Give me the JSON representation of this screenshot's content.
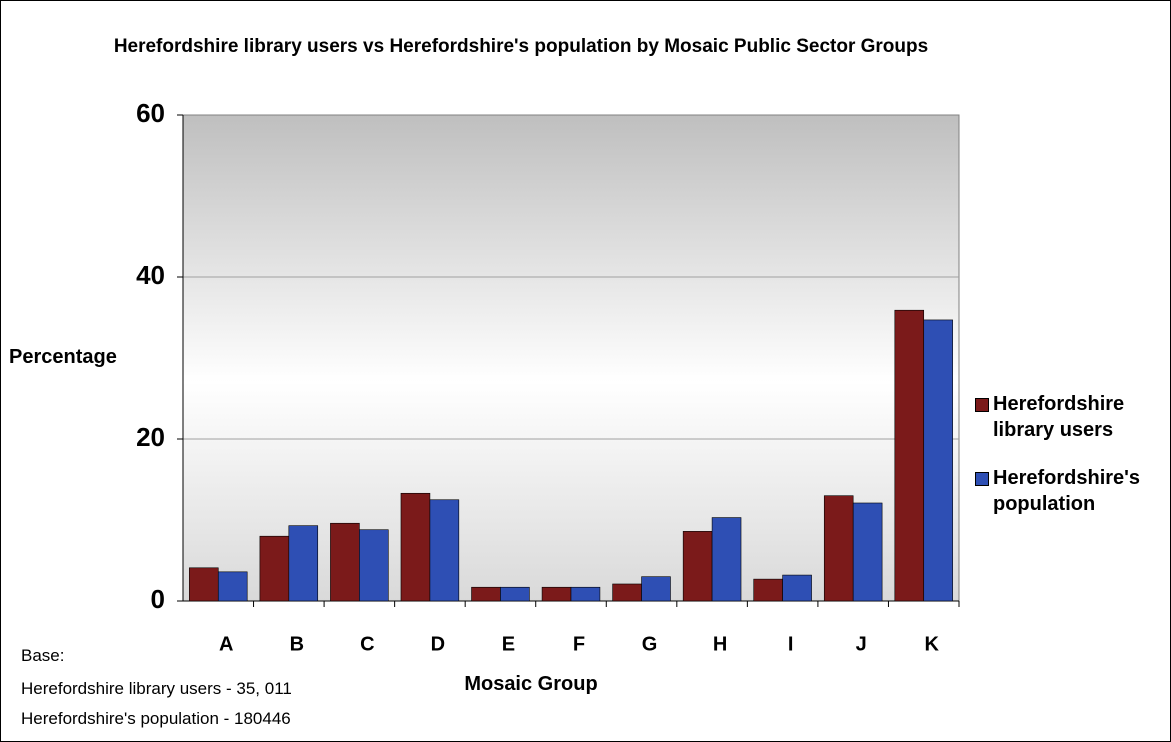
{
  "chart_data": {
    "type": "bar",
    "title": "Herefordshire library users vs Herefordshire's population by Mosaic Public Sector Groups",
    "x_label": "Mosaic Group",
    "y_label": "Percentage",
    "notes": [
      "Base:",
      "Herefordshire library users - 35, 011",
      "Herefordshire's population - 180446"
    ],
    "categories": [
      "A",
      "B",
      "C",
      "D",
      "E",
      "F",
      "G",
      "H",
      "I",
      "J",
      "K"
    ],
    "series": [
      {
        "name": "Herefordshire library users",
        "color": "#7b1a1a",
        "values": [
          4.1,
          8.0,
          9.6,
          13.3,
          1.7,
          1.7,
          2.1,
          8.6,
          2.7,
          13.0,
          35.9
        ]
      },
      {
        "name": "Herefordshire's population",
        "color": "#2e4fb4",
        "values": [
          3.6,
          9.3,
          8.8,
          12.5,
          1.7,
          1.7,
          3.0,
          10.3,
          3.2,
          12.1,
          34.7
        ]
      }
    ],
    "ylim": [
      0,
      60
    ],
    "yticks": [
      0,
      20,
      40,
      60
    ],
    "grid": true,
    "legend": "right"
  }
}
